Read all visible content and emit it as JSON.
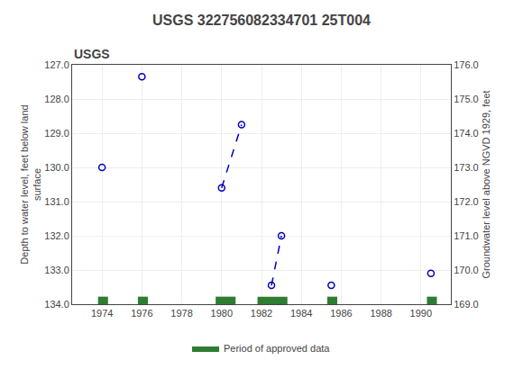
{
  "chart_data": {
    "type": "scatter",
    "title": "USGS 322756082334701 25T004",
    "y_label": "Depth to water level, feet below land\nsurface",
    "y2_label": "Groundwater level above NGVD 1929, feet",
    "annotations": [
      {
        "text": "USGS"
      }
    ],
    "x": [
      1974.0,
      1976.0,
      1980.0,
      1981.0,
      1982.5,
      1983.0,
      1985.5,
      1990.5
    ],
    "series": [
      {
        "type": "scatter",
        "marker": "open circle",
        "color": "#0000bb",
        "values": [
          130.0,
          127.35,
          130.6,
          128.75,
          133.45,
          132.0,
          133.45,
          133.1
        ]
      },
      {
        "type": "line",
        "line_style": "dashed",
        "color": "#0000bb",
        "values": [
          null,
          null,
          130.6,
          128.75,
          null,
          null,
          null,
          null
        ]
      },
      {
        "type": "line",
        "line_style": "dashed",
        "color": "#0000bb",
        "values": [
          null,
          null,
          null,
          null,
          133.45,
          132.0,
          null,
          null
        ]
      },
      {
        "type": "band",
        "name": "Period of approved data",
        "color": "#2e7d32",
        "x_ranges": [
          [
            1973.8,
            1974.3
          ],
          [
            1975.8,
            1976.3
          ],
          [
            1979.7,
            1980.7
          ],
          [
            1981.8,
            1983.3
          ],
          [
            1985.3,
            1985.8
          ],
          [
            1990.3,
            1990.8
          ]
        ],
        "y_range": [
          133.78,
          134.0
        ]
      }
    ],
    "xlim": [
      1972.5,
      1991.5
    ],
    "xticks": [
      1974,
      1976,
      1978,
      1980,
      1982,
      1984,
      1986,
      1988,
      1990
    ],
    "ylim": [
      134.0,
      127.0
    ],
    "yticks": [
      {
        "value": 127.0,
        "label": "127.0"
      },
      {
        "value": 128.0,
        "label": "128.0"
      },
      {
        "value": 129.0,
        "label": "129.0"
      },
      {
        "value": 130.0,
        "label": "130.0"
      },
      {
        "value": 131.0,
        "label": "131.0"
      },
      {
        "value": 132.0,
        "label": "132.0"
      },
      {
        "value": 133.0,
        "label": "133.0"
      },
      {
        "value": 134.0,
        "label": "134.0"
      }
    ],
    "y2lim": [
      169.0,
      176.0
    ],
    "y2ticks": [
      {
        "value": 176.0,
        "label": "176.0"
      },
      {
        "value": 175.0,
        "label": "175.0"
      },
      {
        "value": 174.0,
        "label": "174.0"
      },
      {
        "value": 173.0,
        "label": "173.0"
      },
      {
        "value": 172.0,
        "label": "172.0"
      },
      {
        "value": 171.0,
        "label": "171.0"
      },
      {
        "value": 170.0,
        "label": "170.0"
      },
      {
        "value": 169.0,
        "label": "169.0"
      }
    ],
    "grid": true,
    "legend": "bottom"
  }
}
